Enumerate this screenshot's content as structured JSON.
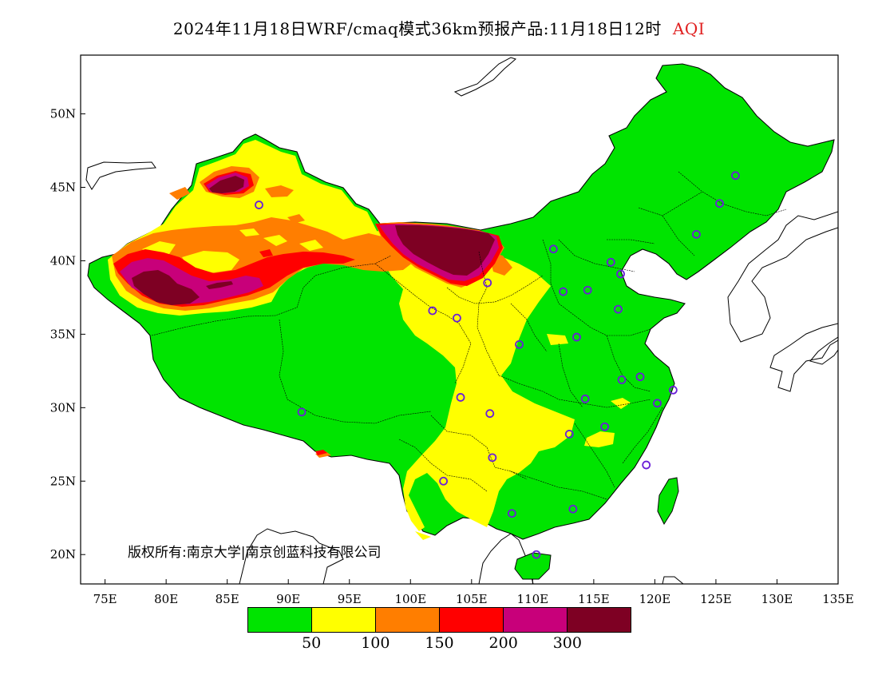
{
  "title": {
    "main": "2024年11月18日WRF/cmaq模式36km预报产品:11月18日12时",
    "variable": "AQI",
    "variable_color": "#e02020"
  },
  "axes": {
    "y_ticks": [
      "50N",
      "45N",
      "40N",
      "35N",
      "30N",
      "25N",
      "20N"
    ],
    "x_ticks": [
      "75E",
      "80E",
      "85E",
      "90E",
      "95E",
      "100E",
      "105E",
      "110E",
      "115E",
      "120E",
      "125E",
      "130E",
      "135E"
    ],
    "lon_range": [
      73,
      135
    ],
    "lat_range": [
      18,
      54
    ]
  },
  "copyright": "版权所有:南京大学|南京创蓝科技有限公司",
  "legend": {
    "colors": [
      "#00e400",
      "#ffff00",
      "#ff7e00",
      "#ff0000",
      "#c8007a",
      "#7e0023"
    ],
    "labels": [
      "50",
      "100",
      "150",
      "200",
      "300"
    ]
  },
  "stations": [
    [
      87.6,
      43.8
    ],
    [
      91.1,
      29.7
    ],
    [
      101.8,
      36.6
    ],
    [
      103.8,
      36.1
    ],
    [
      106.3,
      38.5
    ],
    [
      108.9,
      34.3
    ],
    [
      104.1,
      30.7
    ],
    [
      106.5,
      29.6
    ],
    [
      106.7,
      26.6
    ],
    [
      102.7,
      25.0
    ],
    [
      108.3,
      22.8
    ],
    [
      110.3,
      20.0
    ],
    [
      113.3,
      23.1
    ],
    [
      113.0,
      28.2
    ],
    [
      115.9,
      28.7
    ],
    [
      114.3,
      30.6
    ],
    [
      117.3,
      31.9
    ],
    [
      118.8,
      32.1
    ],
    [
      120.2,
      30.3
    ],
    [
      121.5,
      31.2
    ],
    [
      119.3,
      26.1
    ],
    [
      113.6,
      34.8
    ],
    [
      117.0,
      36.7
    ],
    [
      114.5,
      38.0
    ],
    [
      112.5,
      37.9
    ],
    [
      111.7,
      40.8
    ],
    [
      116.4,
      39.9
    ],
    [
      117.2,
      39.1
    ],
    [
      123.4,
      41.8
    ],
    [
      125.3,
      43.9
    ],
    [
      126.6,
      45.8
    ]
  ]
}
